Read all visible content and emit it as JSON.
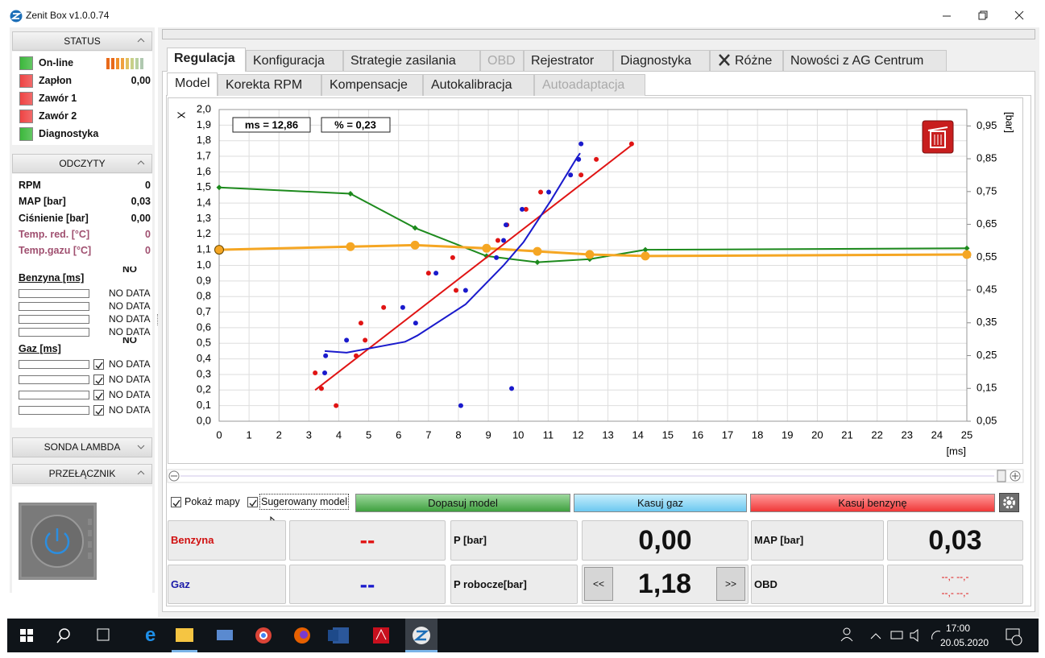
{
  "window": {
    "title": "Zenit Box v1.0.0.74"
  },
  "left_panel": {
    "status": {
      "title": "STATUS",
      "items": [
        {
          "label": "On-line",
          "color": "#3cb83c"
        },
        {
          "label": "Zapłon",
          "color": "#ee4444",
          "value": "0,00"
        },
        {
          "label": "Zawór 1",
          "color": "#ee4444"
        },
        {
          "label": "Zawór 2",
          "color": "#ee4444"
        },
        {
          "label": "Diagnostyka",
          "color": "#3cb83c"
        }
      ]
    },
    "readings": {
      "title": "ODCZYTY",
      "rows": [
        {
          "label": "RPM",
          "value": "0"
        },
        {
          "label": "MAP [bar]",
          "value": "0,03"
        },
        {
          "label": "Ciśnienie [bar]",
          "value": "0,00"
        },
        {
          "label": "Temp. red. [°C]",
          "value": "0"
        },
        {
          "label": "Temp.gazu [°C]",
          "value": "0"
        }
      ]
    },
    "petrol": {
      "title": "Benzyna [ms]",
      "header": "NO DATA",
      "rows": [
        "NO DATA",
        "NO DATA",
        "NO DATA",
        "NO DATA"
      ]
    },
    "gas": {
      "title": "Gaz [ms]",
      "header": "NO DATA",
      "rows": [
        "NO DATA",
        "NO DATA",
        "NO DATA",
        "NO DATA"
      ]
    },
    "lambda": {
      "title": "SONDA LAMBDA"
    },
    "switch": {
      "title": "PRZEŁĄCZNIK"
    }
  },
  "main": {
    "tabs": [
      "Regulacja",
      "Konfiguracja",
      "Strategie zasilania",
      "OBD",
      "Rejestrator",
      "Diagnostyka",
      "Różne",
      "Nowości z AG Centrum"
    ],
    "subtabs": [
      "Model",
      "Korekta RPM",
      "Kompensacje",
      "Autokalibracja",
      "Autoadaptacja"
    ],
    "controls": {
      "show_maps": "Pokaż mapy",
      "suggested_model": "Sugerowany model",
      "fit_model": "Dopasuj model",
      "clear_gas": "Kasuj gaz",
      "clear_petrol": "Kasuj benzynę"
    },
    "readouts": {
      "petrol": {
        "label": "Benzyna",
        "value": "--"
      },
      "gas": {
        "label": "Gaz",
        "value": "--"
      },
      "pressure": {
        "label": "P [bar]",
        "value": "0,00"
      },
      "working_pressure": {
        "label": "P robocze[bar]",
        "value": "1,18",
        "decrease": "<<",
        "increase": ">>"
      },
      "map": {
        "label": "MAP [bar]",
        "value": "0,03"
      },
      "obd": {
        "label": "OBD",
        "values": [
          "--,- --,-",
          "--,- --,-"
        ]
      }
    }
  },
  "chart_data": {
    "type": "line",
    "ms_label": "ms = 12,86",
    "percent_label": "% = 0,23",
    "xlabel": "[ms]",
    "ylabel": "X",
    "y2label": "[bar]",
    "grid": true,
    "xlim": [
      0,
      25
    ],
    "xticks": [
      0,
      1,
      2,
      3,
      4,
      5,
      6,
      7,
      8,
      9,
      10,
      11,
      12,
      13,
      14,
      15,
      16,
      17,
      18,
      19,
      20,
      21,
      22,
      23,
      24,
      25
    ],
    "ylim": [
      0,
      2
    ],
    "yticks": [
      {
        "value": 0,
        "label": "0,0"
      },
      {
        "value": 0.1,
        "label": "0,1"
      },
      {
        "value": 0.2,
        "label": "0,2"
      },
      {
        "value": 0.3,
        "label": "0,3"
      },
      {
        "value": 0.4,
        "label": "0,4"
      },
      {
        "value": 0.5,
        "label": "0,5"
      },
      {
        "value": 0.6,
        "label": "0,6"
      },
      {
        "value": 0.7,
        "label": "0,7"
      },
      {
        "value": 0.8,
        "label": "0,8"
      },
      {
        "value": 0.9,
        "label": "0,9"
      },
      {
        "value": 1.0,
        "label": "1,0"
      },
      {
        "value": 1.1,
        "label": "1,1"
      },
      {
        "value": 1.2,
        "label": "1,2"
      },
      {
        "value": 1.3,
        "label": "1,3"
      },
      {
        "value": 1.4,
        "label": "1,4"
      },
      {
        "value": 1.5,
        "label": "1,5"
      },
      {
        "value": 1.6,
        "label": "1,6"
      },
      {
        "value": 1.7,
        "label": "1,7"
      },
      {
        "value": 1.8,
        "label": "1,8"
      },
      {
        "value": 1.9,
        "label": "1,9"
      },
      {
        "value": 2.0,
        "label": "2,0"
      }
    ],
    "y2lim": [
      0.05,
      1.0
    ],
    "y2ticks": [
      {
        "value": 0.05,
        "label": "0,05"
      },
      {
        "value": 0.15,
        "label": "0,15"
      },
      {
        "value": 0.25,
        "label": "0,25"
      },
      {
        "value": 0.35,
        "label": "0,35"
      },
      {
        "value": 0.45,
        "label": "0,45"
      },
      {
        "value": 0.55,
        "label": "0,55"
      },
      {
        "value": 0.65,
        "label": "0,65"
      },
      {
        "value": 0.75,
        "label": "0,75"
      },
      {
        "value": 0.85,
        "label": "0,85"
      },
      {
        "value": 0.95,
        "label": "0,95"
      }
    ],
    "series": [
      {
        "color": "#1d8a1d",
        "line": true,
        "marker": "diamond",
        "x": [
          0,
          4.39,
          6.55,
          8.94,
          10.64,
          12.39,
          14.25,
          25
        ],
        "values": [
          1.5,
          1.46,
          1.24,
          1.06,
          1.02,
          1.04,
          1.1,
          1.11
        ]
      },
      {
        "color": "#f5a623",
        "line": true,
        "marker": "circle",
        "x": [
          0,
          4.39,
          6.55,
          8.94,
          10.64,
          12.39,
          14.25,
          25
        ],
        "values": [
          1.1,
          1.12,
          1.13,
          1.11,
          1.09,
          1.07,
          1.06,
          1.07
        ]
      },
      {
        "color": "#e01414",
        "line": true,
        "marker": "none",
        "x": [
          3.21,
          13.85
        ],
        "values": [
          0.2,
          1.78
        ]
      },
      {
        "color": "#1a1acc",
        "line": true,
        "marker": "none",
        "x": [
          3.53,
          4.26,
          6.22,
          6.63,
          8.24,
          9.51,
          10.18,
          11.07,
          11.96,
          12.07
        ],
        "values": [
          0.45,
          0.44,
          0.51,
          0.55,
          0.75,
          1.0,
          1.15,
          1.41,
          1.69,
          1.72
        ]
      },
      {
        "color": "#e01414",
        "line": false,
        "marker": "dot",
        "x": [
          3.21,
          3.42,
          3.91,
          4.58,
          4.74,
          4.88,
          5.5,
          7.0,
          7.81,
          7.92,
          9.32,
          9.62,
          10.26,
          10.75,
          12.1,
          12.61,
          13.79
        ],
        "values": [
          0.31,
          0.21,
          0.1,
          0.42,
          0.63,
          0.52,
          0.73,
          0.95,
          1.05,
          0.84,
          1.16,
          1.26,
          1.36,
          1.47,
          1.58,
          1.68,
          1.78
        ]
      },
      {
        "color": "#1a1acc",
        "line": false,
        "marker": "dot",
        "x": [
          3.53,
          3.56,
          4.26,
          6.14,
          6.57,
          7.25,
          8.08,
          8.24,
          9.27,
          9.51,
          9.59,
          10.13,
          11.02,
          11.75,
          12.02,
          12.1,
          9.78
        ],
        "values": [
          0.31,
          0.42,
          0.52,
          0.73,
          0.63,
          0.95,
          0.1,
          0.84,
          1.05,
          1.16,
          1.26,
          1.36,
          1.47,
          1.58,
          1.68,
          1.78,
          0.21
        ]
      }
    ]
  },
  "taskbar": {
    "time": "17:00",
    "date": "20.05.2020"
  }
}
